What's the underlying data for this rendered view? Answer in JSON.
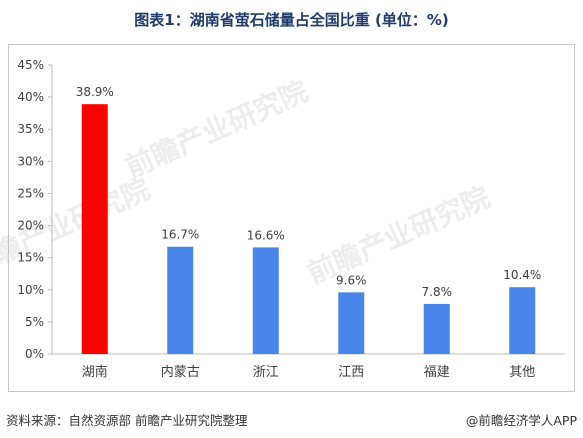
{
  "title": "图表1：湖南省萤石储量占全国比重 (单位：%)",
  "chart_data": {
    "type": "bar",
    "categories": [
      "湖南",
      "内蒙古",
      "浙江",
      "江西",
      "福建",
      "其他"
    ],
    "values": [
      38.9,
      16.7,
      16.6,
      9.6,
      7.8,
      10.4
    ],
    "value_labels": [
      "38.9%",
      "16.7%",
      "16.6%",
      "9.6%",
      "7.8%",
      "10.4%"
    ],
    "bar_colors": [
      "#ff0000",
      "#4a86e8",
      "#4a86e8",
      "#4a86e8",
      "#4a86e8",
      "#4a86e8"
    ],
    "ylim": [
      0,
      45
    ],
    "yticks": [
      0,
      5,
      10,
      15,
      20,
      25,
      30,
      35,
      40,
      45
    ],
    "ytick_labels": [
      "0%",
      "5%",
      "10%",
      "15%",
      "20%",
      "25%",
      "30%",
      "35%",
      "40%",
      "45%"
    ],
    "grid": false,
    "legend": "none"
  },
  "watermark": "前瞻产业研究院",
  "footer": {
    "source": "资料来源：自然资源部 前瞻产业研究院整理",
    "brand": "@前瞻经济学人APP"
  }
}
